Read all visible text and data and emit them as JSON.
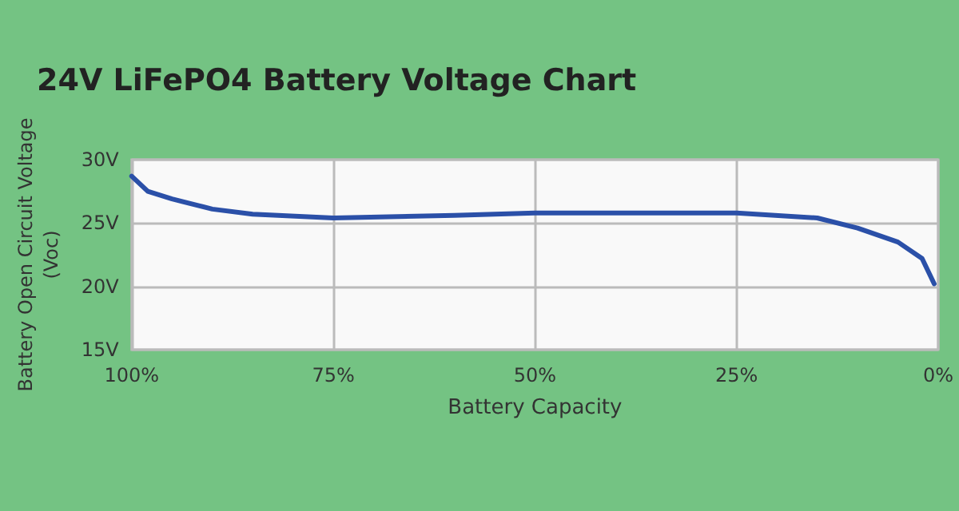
{
  "chart_data": {
    "type": "line",
    "title": "24V LiFePO4 Battery Voltage Chart",
    "xlabel": "Battery Capacity",
    "ylabel": "Battery Open Circuit Voltage\n(Voc)",
    "x": [
      100,
      98,
      95,
      90,
      85,
      75,
      60,
      50,
      35,
      25,
      15,
      10,
      5,
      2,
      0.5
    ],
    "series": [
      {
        "color": "#2b50a8",
        "values": [
          28.7,
          27.5,
          26.9,
          26.1,
          25.7,
          25.4,
          25.6,
          25.8,
          25.8,
          25.8,
          25.4,
          24.6,
          23.5,
          22.2,
          20.2
        ]
      }
    ],
    "xlim": [
      100,
      0
    ],
    "xticks": [
      {
        "value": 100,
        "label": "100%"
      },
      {
        "value": 75,
        "label": "75%"
      },
      {
        "value": 50,
        "label": "50%"
      },
      {
        "value": 25,
        "label": "25%"
      },
      {
        "value": 0,
        "label": "0%"
      }
    ],
    "ylim": [
      15,
      30
    ],
    "yticks": [
      {
        "value": 15,
        "label": "15V"
      },
      {
        "value": 20,
        "label": "20V"
      },
      {
        "value": 25,
        "label": "25V"
      },
      {
        "value": 30,
        "label": "30V"
      }
    ],
    "grid": true,
    "marker": "none",
    "line_style": "solid"
  }
}
